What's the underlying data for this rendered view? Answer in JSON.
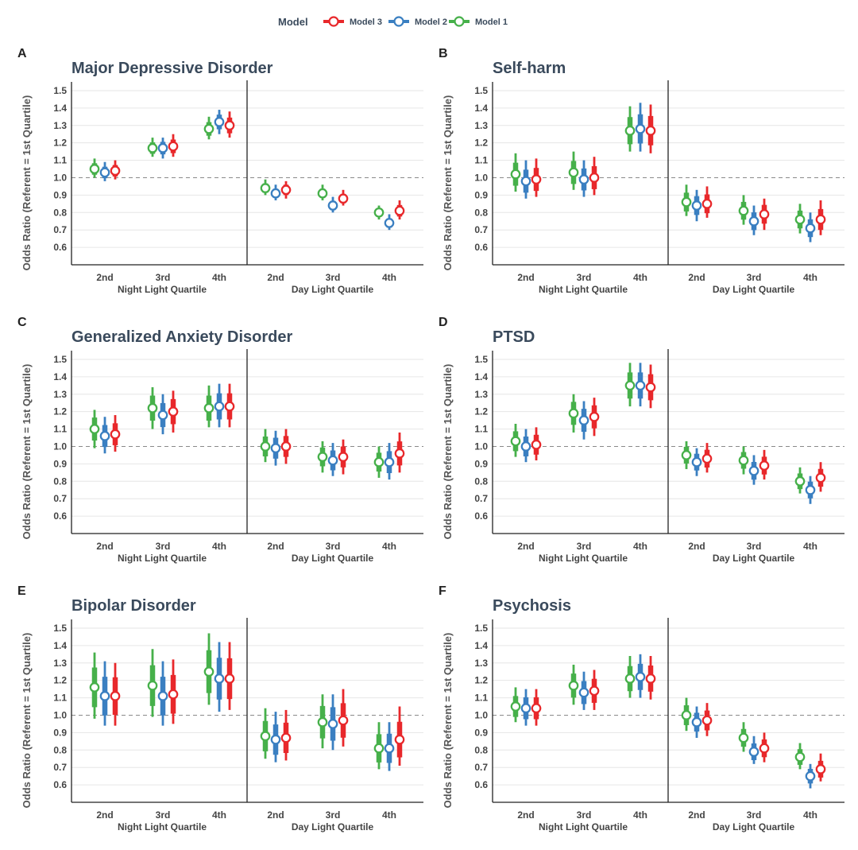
{
  "legend": {
    "title": "Model",
    "items": [
      {
        "label": "Model 3",
        "color": "#e8282b"
      },
      {
        "label": "Model 2",
        "color": "#3a7fc1"
      },
      {
        "label": "Model 1",
        "color": "#46b04a"
      }
    ]
  },
  "chart_data": [
    {
      "type": "forest",
      "letter": "A",
      "title": "Major Depressive Disorder",
      "ylabel": "Odds Ratio (Referent = 1st Quartile)",
      "ylim": [
        0.5,
        1.55
      ],
      "yticks": [
        "0.6",
        "0.7",
        "0.8",
        "0.9",
        "1.0",
        "1.1",
        "1.2",
        "1.3",
        "1.4",
        "1.5"
      ],
      "reference_line": 1.0,
      "groups": [
        {
          "xlabel": "Night Light Quartile",
          "categories": [
            "2nd",
            "3rd",
            "4th"
          ]
        },
        {
          "xlabel": "Day Light Quartile",
          "categories": [
            "2nd",
            "3rd",
            "4th"
          ]
        }
      ],
      "series": [
        {
          "name": "Model 1",
          "color": "#46b04a",
          "values": [
            {
              "or": 1.05,
              "lo": 1.0,
              "hi": 1.11
            },
            {
              "or": 1.17,
              "lo": 1.12,
              "hi": 1.23
            },
            {
              "or": 1.28,
              "lo": 1.22,
              "hi": 1.35
            },
            {
              "or": 0.94,
              "lo": 0.9,
              "hi": 0.99
            },
            {
              "or": 0.91,
              "lo": 0.87,
              "hi": 0.96
            },
            {
              "or": 0.8,
              "lo": 0.76,
              "hi": 0.84
            }
          ]
        },
        {
          "name": "Model 2",
          "color": "#3a7fc1",
          "values": [
            {
              "or": 1.03,
              "lo": 0.98,
              "hi": 1.09
            },
            {
              "or": 1.17,
              "lo": 1.11,
              "hi": 1.23
            },
            {
              "or": 1.32,
              "lo": 1.25,
              "hi": 1.39
            },
            {
              "or": 0.91,
              "lo": 0.87,
              "hi": 0.96
            },
            {
              "or": 0.84,
              "lo": 0.8,
              "hi": 0.89
            },
            {
              "or": 0.74,
              "lo": 0.7,
              "hi": 0.79
            }
          ]
        },
        {
          "name": "Model 3",
          "color": "#e8282b",
          "values": [
            {
              "or": 1.04,
              "lo": 0.99,
              "hi": 1.1
            },
            {
              "or": 1.18,
              "lo": 1.12,
              "hi": 1.25
            },
            {
              "or": 1.3,
              "lo": 1.23,
              "hi": 1.38
            },
            {
              "or": 0.93,
              "lo": 0.88,
              "hi": 0.98
            },
            {
              "or": 0.88,
              "lo": 0.84,
              "hi": 0.93
            },
            {
              "or": 0.81,
              "lo": 0.76,
              "hi": 0.87
            }
          ]
        }
      ]
    },
    {
      "type": "forest",
      "letter": "B",
      "title": "Self-harm",
      "ylabel": "Odds Ratio (Referent = 1st Quartile)",
      "ylim": [
        0.5,
        1.55
      ],
      "yticks": [
        "0.6",
        "0.7",
        "0.8",
        "0.9",
        "1.0",
        "1.1",
        "1.2",
        "1.3",
        "1.4",
        "1.5"
      ],
      "reference_line": 1.0,
      "groups": [
        {
          "xlabel": "Night Light Quartile",
          "categories": [
            "2nd",
            "3rd",
            "4th"
          ]
        },
        {
          "xlabel": "Day Light Quartile",
          "categories": [
            "2nd",
            "3rd",
            "4th"
          ]
        }
      ],
      "series": [
        {
          "name": "Model 1",
          "color": "#46b04a",
          "values": [
            {
              "or": 1.02,
              "lo": 0.92,
              "hi": 1.14
            },
            {
              "or": 1.03,
              "lo": 0.93,
              "hi": 1.15
            },
            {
              "or": 1.27,
              "lo": 1.15,
              "hi": 1.41
            },
            {
              "or": 0.86,
              "lo": 0.78,
              "hi": 0.96
            },
            {
              "or": 0.81,
              "lo": 0.73,
              "hi": 0.9
            },
            {
              "or": 0.76,
              "lo": 0.68,
              "hi": 0.85
            }
          ]
        },
        {
          "name": "Model 2",
          "color": "#3a7fc1",
          "values": [
            {
              "or": 0.98,
              "lo": 0.88,
              "hi": 1.1
            },
            {
              "or": 0.99,
              "lo": 0.89,
              "hi": 1.1
            },
            {
              "or": 1.28,
              "lo": 1.15,
              "hi": 1.43
            },
            {
              "or": 0.84,
              "lo": 0.75,
              "hi": 0.93
            },
            {
              "or": 0.75,
              "lo": 0.67,
              "hi": 0.84
            },
            {
              "or": 0.71,
              "lo": 0.63,
              "hi": 0.8
            }
          ]
        },
        {
          "name": "Model 3",
          "color": "#e8282b",
          "values": [
            {
              "or": 0.99,
              "lo": 0.89,
              "hi": 1.11
            },
            {
              "or": 1.0,
              "lo": 0.9,
              "hi": 1.12
            },
            {
              "or": 1.27,
              "lo": 1.14,
              "hi": 1.42
            },
            {
              "or": 0.85,
              "lo": 0.77,
              "hi": 0.95
            },
            {
              "or": 0.79,
              "lo": 0.7,
              "hi": 0.88
            },
            {
              "or": 0.76,
              "lo": 0.67,
              "hi": 0.87
            }
          ]
        }
      ]
    },
    {
      "type": "forest",
      "letter": "C",
      "title": "Generalized Anxiety Disorder",
      "ylabel": "Odds Ratio (Referent = 1st Quartile)",
      "ylim": [
        0.5,
        1.55
      ],
      "yticks": [
        "0.6",
        "0.7",
        "0.8",
        "0.9",
        "1.0",
        "1.1",
        "1.2",
        "1.3",
        "1.4",
        "1.5"
      ],
      "reference_line": 1.0,
      "groups": [
        {
          "xlabel": "Night Light Quartile",
          "categories": [
            "2nd",
            "3rd",
            "4th"
          ]
        },
        {
          "xlabel": "Day Light Quartile",
          "categories": [
            "2nd",
            "3rd",
            "4th"
          ]
        }
      ],
      "series": [
        {
          "name": "Model 1",
          "color": "#46b04a",
          "values": [
            {
              "or": 1.1,
              "lo": 0.99,
              "hi": 1.21
            },
            {
              "or": 1.22,
              "lo": 1.1,
              "hi": 1.34
            },
            {
              "or": 1.22,
              "lo": 1.11,
              "hi": 1.35
            },
            {
              "or": 1.0,
              "lo": 0.91,
              "hi": 1.1
            },
            {
              "or": 0.94,
              "lo": 0.85,
              "hi": 1.03
            },
            {
              "or": 0.91,
              "lo": 0.82,
              "hi": 1.0
            }
          ]
        },
        {
          "name": "Model 2",
          "color": "#3a7fc1",
          "values": [
            {
              "or": 1.06,
              "lo": 0.96,
              "hi": 1.17
            },
            {
              "or": 1.18,
              "lo": 1.07,
              "hi": 1.3
            },
            {
              "or": 1.23,
              "lo": 1.11,
              "hi": 1.36
            },
            {
              "or": 0.99,
              "lo": 0.89,
              "hi": 1.09
            },
            {
              "or": 0.92,
              "lo": 0.83,
              "hi": 1.02
            },
            {
              "or": 0.91,
              "lo": 0.81,
              "hi": 1.02
            }
          ]
        },
        {
          "name": "Model 3",
          "color": "#e8282b",
          "values": [
            {
              "or": 1.07,
              "lo": 0.97,
              "hi": 1.18
            },
            {
              "or": 1.2,
              "lo": 1.08,
              "hi": 1.32
            },
            {
              "or": 1.23,
              "lo": 1.11,
              "hi": 1.36
            },
            {
              "or": 1.0,
              "lo": 0.9,
              "hi": 1.1
            },
            {
              "or": 0.94,
              "lo": 0.84,
              "hi": 1.04
            },
            {
              "or": 0.96,
              "lo": 0.85,
              "hi": 1.08
            }
          ]
        }
      ]
    },
    {
      "type": "forest",
      "letter": "D",
      "title": "PTSD",
      "ylabel": "Odds Ratio (Referent = 1st Quartile)",
      "ylim": [
        0.5,
        1.55
      ],
      "yticks": [
        "0.6",
        "0.7",
        "0.8",
        "0.9",
        "1.0",
        "1.1",
        "1.2",
        "1.3",
        "1.4",
        "1.5"
      ],
      "reference_line": 1.0,
      "groups": [
        {
          "xlabel": "Night Light Quartile",
          "categories": [
            "2nd",
            "3rd",
            "4th"
          ]
        },
        {
          "xlabel": "Day Light Quartile",
          "categories": [
            "2nd",
            "3rd",
            "4th"
          ]
        }
      ],
      "series": [
        {
          "name": "Model 1",
          "color": "#46b04a",
          "values": [
            {
              "or": 1.03,
              "lo": 0.94,
              "hi": 1.13
            },
            {
              "or": 1.19,
              "lo": 1.08,
              "hi": 1.3
            },
            {
              "or": 1.35,
              "lo": 1.23,
              "hi": 1.48
            },
            {
              "or": 0.95,
              "lo": 0.87,
              "hi": 1.03
            },
            {
              "or": 0.92,
              "lo": 0.84,
              "hi": 1.0
            },
            {
              "or": 0.8,
              "lo": 0.73,
              "hi": 0.88
            }
          ]
        },
        {
          "name": "Model 2",
          "color": "#3a7fc1",
          "values": [
            {
              "or": 1.0,
              "lo": 0.91,
              "hi": 1.1
            },
            {
              "or": 1.15,
              "lo": 1.04,
              "hi": 1.26
            },
            {
              "or": 1.35,
              "lo": 1.23,
              "hi": 1.48
            },
            {
              "or": 0.91,
              "lo": 0.83,
              "hi": 0.99
            },
            {
              "or": 0.86,
              "lo": 0.78,
              "hi": 0.95
            },
            {
              "or": 0.75,
              "lo": 0.67,
              "hi": 0.83
            }
          ]
        },
        {
          "name": "Model 3",
          "color": "#e8282b",
          "values": [
            {
              "or": 1.01,
              "lo": 0.92,
              "hi": 1.11
            },
            {
              "or": 1.17,
              "lo": 1.06,
              "hi": 1.28
            },
            {
              "or": 1.34,
              "lo": 1.22,
              "hi": 1.47
            },
            {
              "or": 0.93,
              "lo": 0.85,
              "hi": 1.02
            },
            {
              "or": 0.89,
              "lo": 0.81,
              "hi": 0.98
            },
            {
              "or": 0.82,
              "lo": 0.74,
              "hi": 0.91
            }
          ]
        }
      ]
    },
    {
      "type": "forest",
      "letter": "E",
      "title": "Bipolar Disorder",
      "ylabel": "Odds Ratio (Referent = 1st Quartile)",
      "ylim": [
        0.5,
        1.55
      ],
      "yticks": [
        "0.6",
        "0.7",
        "0.8",
        "0.9",
        "1.0",
        "1.1",
        "1.2",
        "1.3",
        "1.4",
        "1.5"
      ],
      "reference_line": 1.0,
      "groups": [
        {
          "xlabel": "Night Light Quartile",
          "categories": [
            "2nd",
            "3rd",
            "4th"
          ]
        },
        {
          "xlabel": "Day Light Quartile",
          "categories": [
            "2nd",
            "3rd",
            "4th"
          ]
        }
      ],
      "series": [
        {
          "name": "Model 1",
          "color": "#46b04a",
          "values": [
            {
              "or": 1.16,
              "lo": 0.98,
              "hi": 1.36
            },
            {
              "or": 1.17,
              "lo": 0.99,
              "hi": 1.38
            },
            {
              "or": 1.25,
              "lo": 1.06,
              "hi": 1.47
            },
            {
              "or": 0.88,
              "lo": 0.75,
              "hi": 1.04
            },
            {
              "or": 0.96,
              "lo": 0.81,
              "hi": 1.12
            },
            {
              "or": 0.81,
              "lo": 0.69,
              "hi": 0.96
            }
          ]
        },
        {
          "name": "Model 2",
          "color": "#3a7fc1",
          "values": [
            {
              "or": 1.11,
              "lo": 0.94,
              "hi": 1.31
            },
            {
              "or": 1.11,
              "lo": 0.94,
              "hi": 1.31
            },
            {
              "or": 1.21,
              "lo": 1.02,
              "hi": 1.42
            },
            {
              "or": 0.86,
              "lo": 0.73,
              "hi": 1.02
            },
            {
              "or": 0.95,
              "lo": 0.8,
              "hi": 1.12
            },
            {
              "or": 0.81,
              "lo": 0.68,
              "hi": 0.96
            }
          ]
        },
        {
          "name": "Model 3",
          "color": "#e8282b",
          "values": [
            {
              "or": 1.11,
              "lo": 0.94,
              "hi": 1.3
            },
            {
              "or": 1.12,
              "lo": 0.95,
              "hi": 1.32
            },
            {
              "or": 1.21,
              "lo": 1.03,
              "hi": 1.42
            },
            {
              "or": 0.87,
              "lo": 0.74,
              "hi": 1.03
            },
            {
              "or": 0.97,
              "lo": 0.82,
              "hi": 1.15
            },
            {
              "or": 0.86,
              "lo": 0.71,
              "hi": 1.05
            }
          ]
        }
      ]
    },
    {
      "type": "forest",
      "letter": "F",
      "title": "Psychosis",
      "ylabel": "Odds Ratio (Referent = 1st Quartile)",
      "ylim": [
        0.5,
        1.55
      ],
      "yticks": [
        "0.6",
        "0.7",
        "0.8",
        "0.9",
        "1.0",
        "1.1",
        "1.2",
        "1.3",
        "1.4",
        "1.5"
      ],
      "reference_line": 1.0,
      "groups": [
        {
          "xlabel": "Night Light Quartile",
          "categories": [
            "2nd",
            "3rd",
            "4th"
          ]
        },
        {
          "xlabel": "Day Light Quartile",
          "categories": [
            "2nd",
            "3rd",
            "4th"
          ]
        }
      ],
      "series": [
        {
          "name": "Model 1",
          "color": "#46b04a",
          "values": [
            {
              "or": 1.05,
              "lo": 0.96,
              "hi": 1.16
            },
            {
              "or": 1.17,
              "lo": 1.06,
              "hi": 1.29
            },
            {
              "or": 1.21,
              "lo": 1.1,
              "hi": 1.34
            },
            {
              "or": 1.0,
              "lo": 0.91,
              "hi": 1.1
            },
            {
              "or": 0.87,
              "lo": 0.79,
              "hi": 0.96
            },
            {
              "or": 0.76,
              "lo": 0.69,
              "hi": 0.84
            }
          ]
        },
        {
          "name": "Model 2",
          "color": "#3a7fc1",
          "values": [
            {
              "or": 1.04,
              "lo": 0.94,
              "hi": 1.15
            },
            {
              "or": 1.13,
              "lo": 1.03,
              "hi": 1.25
            },
            {
              "or": 1.22,
              "lo": 1.1,
              "hi": 1.35
            },
            {
              "or": 0.96,
              "lo": 0.87,
              "hi": 1.05
            },
            {
              "or": 0.79,
              "lo": 0.72,
              "hi": 0.88
            },
            {
              "or": 0.65,
              "lo": 0.58,
              "hi": 0.72
            }
          ]
        },
        {
          "name": "Model 3",
          "color": "#e8282b",
          "values": [
            {
              "or": 1.04,
              "lo": 0.94,
              "hi": 1.15
            },
            {
              "or": 1.14,
              "lo": 1.03,
              "hi": 1.26
            },
            {
              "or": 1.21,
              "lo": 1.09,
              "hi": 1.34
            },
            {
              "or": 0.97,
              "lo": 0.88,
              "hi": 1.07
            },
            {
              "or": 0.81,
              "lo": 0.73,
              "hi": 0.9
            },
            {
              "or": 0.69,
              "lo": 0.62,
              "hi": 0.78
            }
          ]
        }
      ]
    }
  ]
}
